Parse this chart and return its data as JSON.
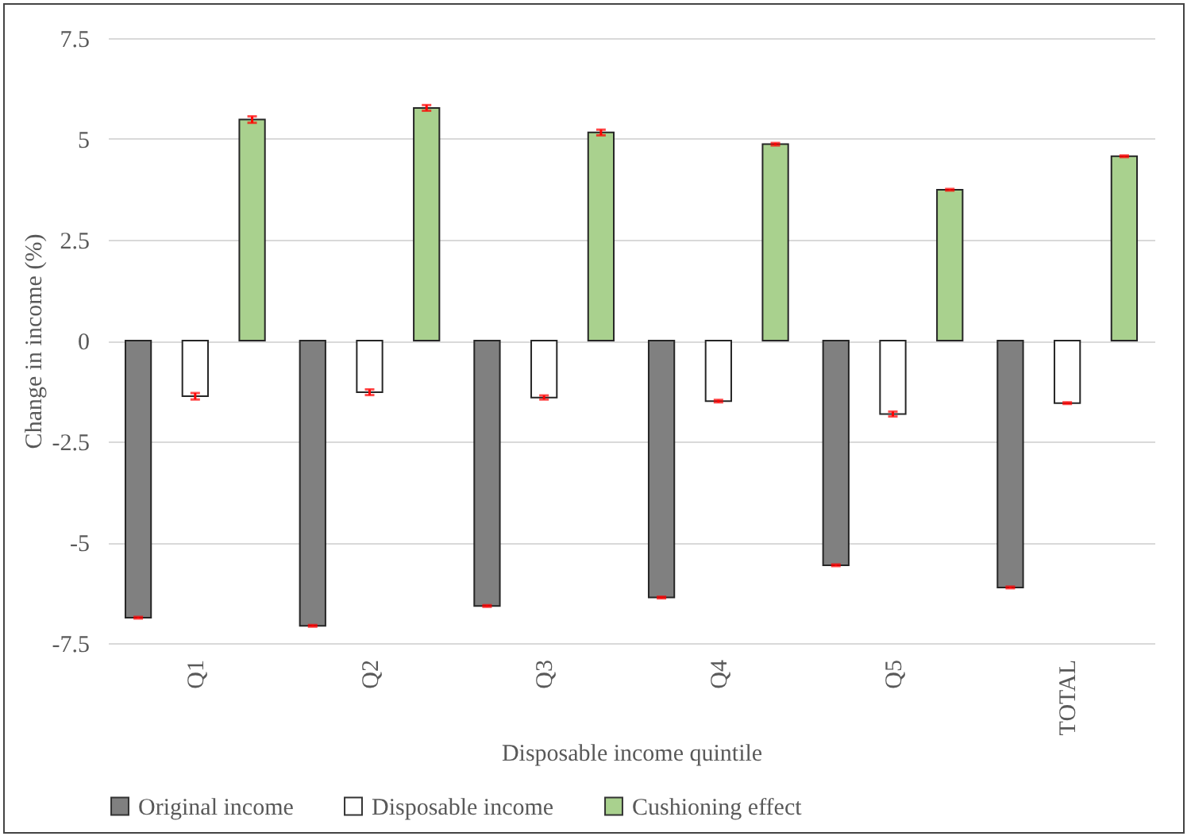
{
  "chart_data": {
    "type": "bar",
    "xlabel": "Disposable income quintile",
    "ylabel": "Change in income (%)",
    "categories": [
      "Q1",
      "Q2",
      "Q3",
      "Q4",
      "Q5",
      "TOTAL"
    ],
    "series": [
      {
        "name": "Original income",
        "color": "#808080",
        "values": [
          -6.87,
          -7.07,
          -6.58,
          -6.37,
          -5.57,
          -6.12
        ],
        "errors": [
          0.02,
          0.02,
          0.02,
          0.02,
          0.02,
          0.02
        ]
      },
      {
        "name": "Disposable income",
        "color": "#ffffff",
        "values": [
          -1.38,
          -1.28,
          -1.41,
          -1.5,
          -1.82,
          -1.55
        ],
        "errors": [
          0.08,
          0.07,
          0.05,
          0.03,
          0.06,
          0.02
        ]
      },
      {
        "name": "Cushioning effect",
        "color": "#a9d18e",
        "values": [
          5.48,
          5.77,
          5.16,
          4.87,
          3.74,
          4.57
        ],
        "errors": [
          0.08,
          0.07,
          0.07,
          0.03,
          0.02,
          0.02
        ]
      }
    ],
    "ylim": [
      -7.5,
      7.5
    ],
    "yticks": [
      -7.5,
      -5,
      -2.5,
      0,
      2.5,
      5,
      7.5
    ],
    "grid": "y",
    "legend": "bottom"
  }
}
